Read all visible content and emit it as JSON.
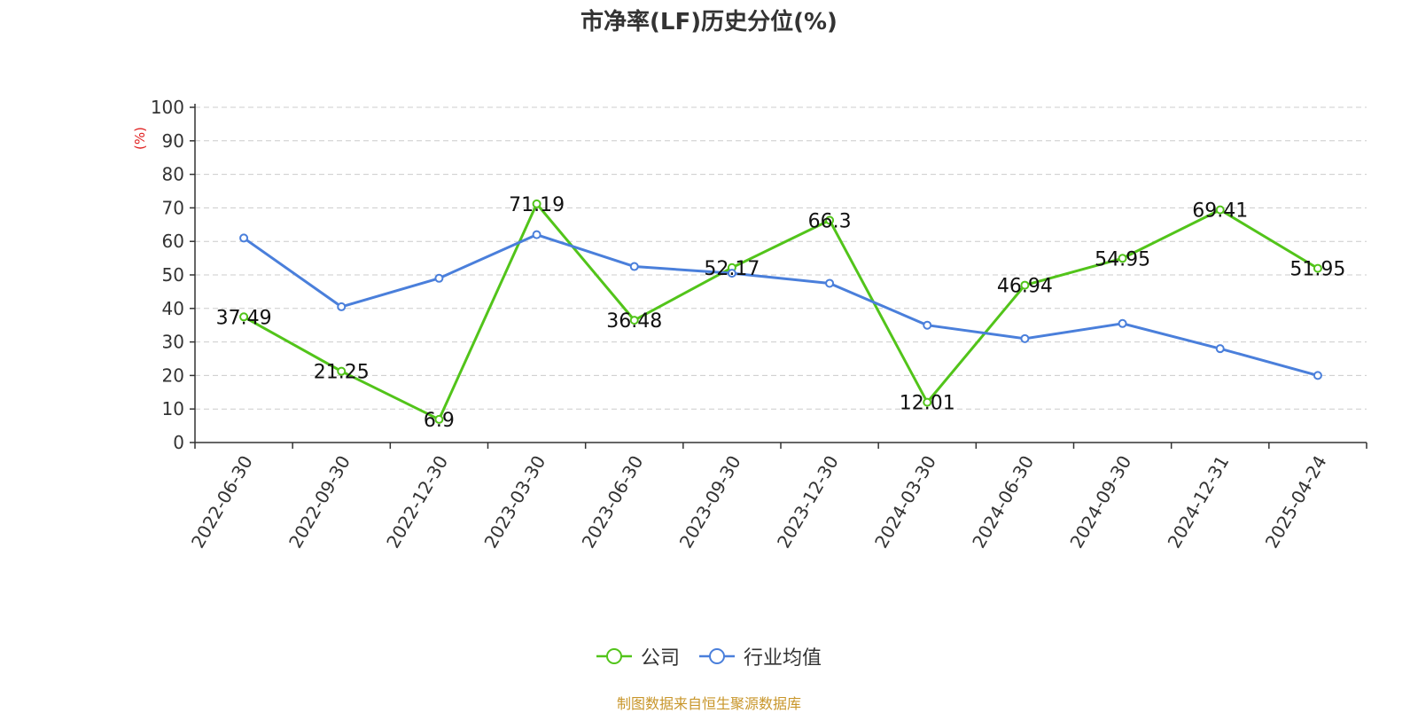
{
  "chart_data": {
    "type": "line",
    "title": "市净率(LF)历史分位(%)",
    "ylabel": "(%)",
    "xlabel": "",
    "ylim": [
      0,
      100
    ],
    "yticks": [
      0,
      10,
      20,
      30,
      40,
      50,
      60,
      70,
      80,
      90,
      100
    ],
    "grid": true,
    "legend_position": "bottom",
    "categories": [
      "2022-06-30",
      "2022-09-30",
      "2022-12-30",
      "2023-03-30",
      "2023-06-30",
      "2023-09-30",
      "2023-12-30",
      "2024-03-30",
      "2024-06-30",
      "2024-09-30",
      "2024-12-31",
      "2025-04-24"
    ],
    "series": [
      {
        "name": "公司",
        "color": "#52c41a",
        "labels": [
          "37.49",
          "21.25",
          "6.9",
          "71.19",
          "36.48",
          "52.17",
          "66.3",
          "12.01",
          "46.94",
          "54.95",
          "69.41",
          "51.95"
        ],
        "values": [
          37.49,
          21.25,
          6.9,
          71.19,
          36.48,
          52.17,
          66.3,
          12.01,
          46.94,
          54.95,
          69.41,
          51.95
        ]
      },
      {
        "name": "行业均值",
        "color": "#4a7fdb",
        "values": [
          61,
          40.5,
          49,
          62,
          52.5,
          50.5,
          47.5,
          35,
          31,
          35.5,
          28,
          20
        ]
      }
    ]
  },
  "source_note": "制图数据来自恒生聚源数据库"
}
